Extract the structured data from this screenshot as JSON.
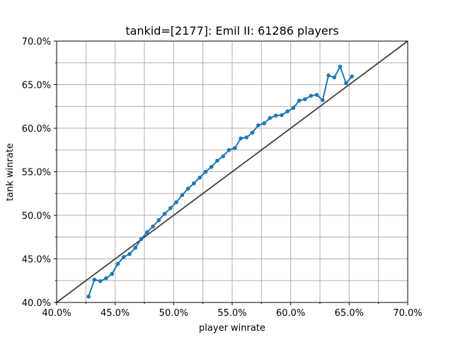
{
  "chart_data": {
    "type": "line",
    "title": "tankid=[2177]: Emil II: 61286 players",
    "xlabel": "player winrate",
    "ylabel": "tank winrate",
    "xlim": [
      0.4,
      0.7
    ],
    "ylim": [
      0.4,
      0.7
    ],
    "grid": true,
    "x_ticks": [
      {
        "value": 0.4,
        "label": "40.0%"
      },
      {
        "value": 0.45,
        "label": "45.0%"
      },
      {
        "value": 0.5,
        "label": "50.0%"
      },
      {
        "value": 0.55,
        "label": "55.0%"
      },
      {
        "value": 0.6,
        "label": "60.0%"
      },
      {
        "value": 0.65,
        "label": "65.0%"
      },
      {
        "value": 0.7,
        "label": "70.0%"
      }
    ],
    "y_ticks": [
      {
        "value": 0.4,
        "label": "40.0%"
      },
      {
        "value": 0.45,
        "label": "45.0%"
      },
      {
        "value": 0.5,
        "label": "50.0%"
      },
      {
        "value": 0.55,
        "label": "55.0%"
      },
      {
        "value": 0.6,
        "label": "60.0%"
      },
      {
        "value": 0.65,
        "label": "65.0%"
      },
      {
        "value": 0.7,
        "label": "70.0%"
      }
    ],
    "minor_x_ticks": [
      0.425,
      0.475,
      0.525,
      0.575,
      0.625,
      0.675
    ],
    "minor_y_ticks": [
      0.425,
      0.475,
      0.525,
      0.575,
      0.625,
      0.675
    ],
    "reference_line": {
      "x": [
        0.4,
        0.7
      ],
      "y": [
        0.4,
        0.7
      ],
      "color": "#404040"
    },
    "series": [
      {
        "color": "#1f77b4",
        "x": [
          0.4273,
          0.4323,
          0.4373,
          0.4423,
          0.4473,
          0.4523,
          0.4573,
          0.4623,
          0.4673,
          0.4723,
          0.4773,
          0.4823,
          0.4873,
          0.4923,
          0.4973,
          0.5023,
          0.5073,
          0.5123,
          0.5173,
          0.5223,
          0.5273,
          0.5323,
          0.5373,
          0.5423,
          0.5473,
          0.5523,
          0.5573,
          0.5623,
          0.5673,
          0.5723,
          0.5773,
          0.5823,
          0.5873,
          0.5923,
          0.5973,
          0.6023,
          0.6073,
          0.6123,
          0.6173,
          0.6223,
          0.6273,
          0.6323,
          0.6373,
          0.6423,
          0.6473,
          0.6523
        ],
        "y": [
          0.4067,
          0.4262,
          0.4245,
          0.4278,
          0.4327,
          0.4444,
          0.4522,
          0.4556,
          0.4628,
          0.4728,
          0.4806,
          0.4872,
          0.4945,
          0.5017,
          0.5083,
          0.515,
          0.5233,
          0.5306,
          0.5367,
          0.5433,
          0.55,
          0.5556,
          0.5628,
          0.5678,
          0.575,
          0.5772,
          0.5883,
          0.5894,
          0.595,
          0.6033,
          0.6056,
          0.6117,
          0.6144,
          0.615,
          0.6194,
          0.6233,
          0.6317,
          0.6333,
          0.6372,
          0.6383,
          0.6322,
          0.6606,
          0.6583,
          0.6706,
          0.6517,
          0.6594
        ]
      }
    ]
  }
}
